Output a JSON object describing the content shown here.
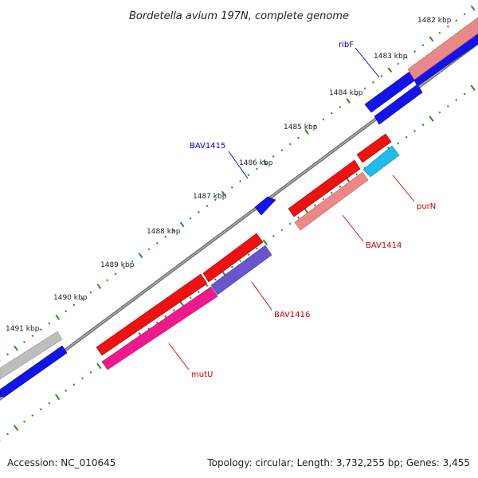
{
  "title": "Bordetella avium 197N, complete genome",
  "footer": {
    "accession": "Accession: NC_010645",
    "summary": "Topology: circular; Length: 3,732,255 bp; Genes: 3,455"
  },
  "colors": {
    "backbone": "#7a7a7a",
    "tick": "#2e8b2e",
    "forward_gene": "#ee1111",
    "reverse_gene": "#1010ee",
    "forward_label": "#cc0000",
    "reverse_label": "#0000cc"
  },
  "kbp_labels": [
    "1482 kbp",
    "1483 kbp",
    "1484 kbp",
    "1485 kbp",
    "1486 kbp",
    "1487 kbp",
    "1488 kbp",
    "1489 kbp",
    "1490 kbp",
    "1491 kbp"
  ],
  "gene_labels": [
    {
      "text": "ribF",
      "strand": "reverse"
    },
    {
      "text": "BAV1415",
      "strand": "reverse"
    },
    {
      "text": "purN",
      "strand": "forward"
    },
    {
      "text": "BAV1414",
      "strand": "forward"
    },
    {
      "text": "BAV1416",
      "strand": "forward"
    },
    {
      "text": "mutU",
      "strand": "forward"
    }
  ]
}
